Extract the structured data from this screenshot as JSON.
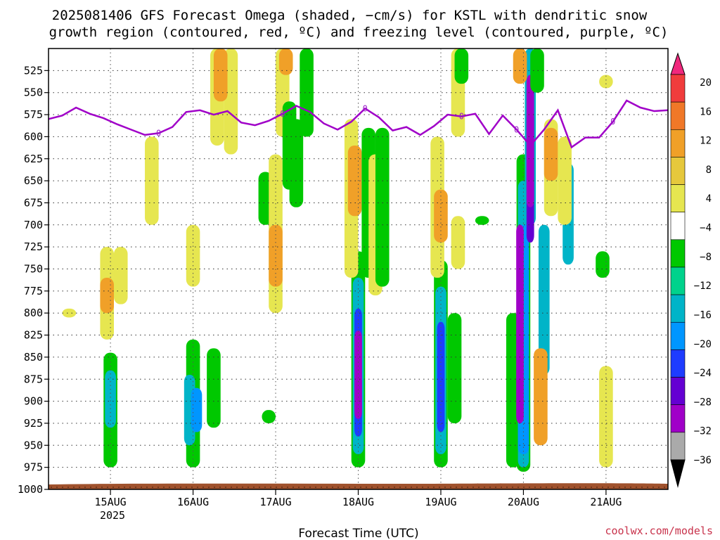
{
  "chart_data": {
    "type": "heatmap",
    "title_line1": "2025081406 GFS Forecast Omega (shaded, −cm/s) for KSTL with dendritic snow",
    "title_line2": "growth region (contoured, red, ºC) and freezing level (contoured, purple, ºC)",
    "xlabel": "Forecast Time (UTC)",
    "x_ticks": [
      "15AUG",
      "16AUG",
      "17AUG",
      "18AUG",
      "19AUG",
      "20AUG",
      "21AUG"
    ],
    "x_year_label": "2025",
    "x_range": [
      "2025-08-14T06",
      "2025-08-21T18"
    ],
    "y_ticks": [
      525,
      550,
      575,
      600,
      625,
      650,
      675,
      700,
      725,
      750,
      775,
      800,
      825,
      850,
      875,
      900,
      925,
      950,
      975,
      1000
    ],
    "y_range": [
      500,
      1000
    ],
    "grid": true,
    "colorbar": {
      "labels": [
        "20",
        "16",
        "12",
        "8",
        "4",
        "−4",
        "−8",
        "−12",
        "−16",
        "−20",
        "−24",
        "−28",
        "−32",
        "−36"
      ],
      "colors": [
        "#f0287d",
        "#f03c3c",
        "#f07828",
        "#f0a028",
        "#e6c83c",
        "#e6e650",
        "#ffffff",
        "#00c800",
        "#00d28c",
        "#00b4c8",
        "#0096ff",
        "#1e3cff",
        "#6400d2",
        "#a000c8",
        "#aaaaaa",
        "#000000"
      ]
    },
    "freezing_level": {
      "label": "0",
      "color": "#a000c8",
      "points": [
        [
          "2025-08-14T06",
          580
        ],
        [
          "2025-08-14T10",
          576
        ],
        [
          "2025-08-14T14",
          567
        ],
        [
          "2025-08-14T18",
          574
        ],
        [
          "2025-08-14T22",
          579
        ],
        [
          "2025-08-15T02",
          586
        ],
        [
          "2025-08-15T06",
          592
        ],
        [
          "2025-08-15T10",
          598
        ],
        [
          "2025-08-15T14",
          596
        ],
        [
          "2025-08-15T18",
          589
        ],
        [
          "2025-08-15T22",
          572
        ],
        [
          "2025-08-16T02",
          570
        ],
        [
          "2025-08-16T06",
          575
        ],
        [
          "2025-08-16T10",
          571
        ],
        [
          "2025-08-16T14",
          584
        ],
        [
          "2025-08-16T18",
          587
        ],
        [
          "2025-08-16T22",
          582
        ],
        [
          "2025-08-17T02",
          574
        ],
        [
          "2025-08-17T06",
          565
        ],
        [
          "2025-08-17T10",
          572
        ],
        [
          "2025-08-17T14",
          585
        ],
        [
          "2025-08-17T18",
          592
        ],
        [
          "2025-08-17T22",
          583
        ],
        [
          "2025-08-18T02",
          568
        ],
        [
          "2025-08-18T06",
          578
        ],
        [
          "2025-08-18T10",
          593
        ],
        [
          "2025-08-18T14",
          589
        ],
        [
          "2025-08-18T18",
          598
        ],
        [
          "2025-08-18T22",
          588
        ],
        [
          "2025-08-19T02",
          575
        ],
        [
          "2025-08-19T06",
          577
        ],
        [
          "2025-08-19T10",
          574
        ],
        [
          "2025-08-19T14",
          597
        ],
        [
          "2025-08-19T18",
          576
        ],
        [
          "2025-08-19T22",
          592
        ],
        [
          "2025-08-20T02",
          610
        ],
        [
          "2025-08-20T06",
          592
        ],
        [
          "2025-08-20T10",
          570
        ],
        [
          "2025-08-20T14",
          612
        ],
        [
          "2025-08-20T18",
          601
        ],
        [
          "2025-08-20T22",
          601
        ],
        [
          "2025-08-21T02",
          583
        ],
        [
          "2025-08-21T06",
          559
        ],
        [
          "2025-08-21T10",
          567
        ],
        [
          "2025-08-21T14",
          571
        ],
        [
          "2025-08-21T18",
          570
        ]
      ]
    },
    "omega_cells": [
      {
        "t": "2025-08-14T12",
        "top": 795,
        "bottom": 805,
        "value": 6
      },
      {
        "t": "2025-08-15T00",
        "top": 845,
        "bottom": 975,
        "value": -6
      },
      {
        "t": "2025-08-15T00",
        "top": 865,
        "bottom": 930,
        "value": -12
      },
      {
        "t": "2025-08-14T23",
        "top": 725,
        "bottom": 830,
        "value": 6
      },
      {
        "t": "2025-08-14T23",
        "top": 760,
        "bottom": 800,
        "value": 10
      },
      {
        "t": "2025-08-15T12",
        "top": 600,
        "bottom": 700,
        "value": 6
      },
      {
        "t": "2025-08-15T03",
        "top": 725,
        "bottom": 790,
        "value": 6
      },
      {
        "t": "2025-08-16T00",
        "top": 830,
        "bottom": 975,
        "value": -6
      },
      {
        "t": "2025-08-15T23",
        "top": 870,
        "bottom": 950,
        "value": -12
      },
      {
        "t": "2025-08-16T01",
        "top": 885,
        "bottom": 935,
        "value": -16
      },
      {
        "t": "2025-08-16T00",
        "top": 700,
        "bottom": 770,
        "value": 6
      },
      {
        "t": "2025-08-16T06",
        "top": 840,
        "bottom": 930,
        "value": -6
      },
      {
        "t": "2025-08-16T07",
        "top": 500,
        "bottom": 610,
        "value": 6
      },
      {
        "t": "2025-08-16T11",
        "top": 500,
        "bottom": 620,
        "value": 6
      },
      {
        "t": "2025-08-16T08",
        "top": 500,
        "bottom": 560,
        "value": 10
      },
      {
        "t": "2025-08-16T21",
        "top": 640,
        "bottom": 700,
        "value": -6
      },
      {
        "t": "2025-08-17T00",
        "top": 620,
        "bottom": 800,
        "value": 6
      },
      {
        "t": "2025-08-17T00",
        "top": 700,
        "bottom": 770,
        "value": 10
      },
      {
        "t": "2025-08-17T02",
        "top": 500,
        "bottom": 600,
        "value": 6
      },
      {
        "t": "2025-08-17T03",
        "top": 500,
        "bottom": 530,
        "value": 10
      },
      {
        "t": "2025-08-17T04",
        "top": 560,
        "bottom": 660,
        "value": -6
      },
      {
        "t": "2025-08-17T06",
        "top": 580,
        "bottom": 680,
        "value": -6
      },
      {
        "t": "2025-08-16T22",
        "top": 910,
        "bottom": 925,
        "value": -6
      },
      {
        "t": "2025-08-17T09",
        "top": 500,
        "bottom": 600,
        "value": -6
      },
      {
        "t": "2025-08-18T00",
        "top": 730,
        "bottom": 975,
        "value": -6
      },
      {
        "t": "2025-08-18T00",
        "top": 760,
        "bottom": 960,
        "value": -12
      },
      {
        "t": "2025-08-18T00",
        "top": 795,
        "bottom": 940,
        "value": -20
      },
      {
        "t": "2025-08-18T00",
        "top": 820,
        "bottom": 920,
        "value": -28
      },
      {
        "t": "2025-08-17T22",
        "top": 580,
        "bottom": 760,
        "value": 6
      },
      {
        "t": "2025-08-17T23",
        "top": 610,
        "bottom": 690,
        "value": 10
      },
      {
        "t": "2025-08-18T03",
        "top": 590,
        "bottom": 760,
        "value": -6
      },
      {
        "t": "2025-08-18T05",
        "top": 620,
        "bottom": 780,
        "value": 6
      },
      {
        "t": "2025-08-18T07",
        "top": 590,
        "bottom": 770,
        "value": -6
      },
      {
        "t": "2025-08-19T00",
        "top": 740,
        "bottom": 975,
        "value": -6
      },
      {
        "t": "2025-08-19T00",
        "top": 770,
        "bottom": 960,
        "value": -12
      },
      {
        "t": "2025-08-19T00",
        "top": 810,
        "bottom": 935,
        "value": -20
      },
      {
        "t": "2025-08-18T23",
        "top": 600,
        "bottom": 760,
        "value": 6
      },
      {
        "t": "2025-08-19T00",
        "top": 660,
        "bottom": 720,
        "value": 10
      },
      {
        "t": "2025-08-19T05",
        "top": 690,
        "bottom": 750,
        "value": 6
      },
      {
        "t": "2025-08-19T04",
        "top": 800,
        "bottom": 925,
        "value": -6
      },
      {
        "t": "2025-08-19T05",
        "top": 500,
        "bottom": 600,
        "value": 6
      },
      {
        "t": "2025-08-19T06",
        "top": 500,
        "bottom": 540,
        "value": -6
      },
      {
        "t": "2025-08-19T12",
        "top": 690,
        "bottom": 700,
        "value": -6
      },
      {
        "t": "2025-08-20T00",
        "top": 620,
        "bottom": 980,
        "value": -6
      },
      {
        "t": "2025-08-19T21",
        "top": 800,
        "bottom": 975,
        "value": -6
      },
      {
        "t": "2025-08-20T00",
        "top": 650,
        "bottom": 975,
        "value": -12
      },
      {
        "t": "2025-08-20T00",
        "top": 700,
        "bottom": 960,
        "value": -16
      },
      {
        "t": "2025-08-19T23",
        "top": 700,
        "bottom": 925,
        "value": -28
      },
      {
        "t": "2025-08-20T02",
        "top": 500,
        "bottom": 700,
        "value": -12
      },
      {
        "t": "2025-08-20T02",
        "top": 570,
        "bottom": 720,
        "value": -24
      },
      {
        "t": "2025-08-20T02",
        "top": 530,
        "bottom": 680,
        "value": -28
      },
      {
        "t": "2025-08-19T23",
        "top": 500,
        "bottom": 540,
        "value": 10
      },
      {
        "t": "2025-08-20T04",
        "top": 500,
        "bottom": 550,
        "value": -6
      },
      {
        "t": "2025-08-20T06",
        "top": 700,
        "bottom": 870,
        "value": -12
      },
      {
        "t": "2025-08-20T05",
        "top": 840,
        "bottom": 950,
        "value": 10
      },
      {
        "t": "2025-08-20T08",
        "top": 580,
        "bottom": 690,
        "value": 6
      },
      {
        "t": "2025-08-20T08",
        "top": 590,
        "bottom": 650,
        "value": 10
      },
      {
        "t": "2025-08-20T13",
        "top": 630,
        "bottom": 745,
        "value": -12
      },
      {
        "t": "2025-08-20T12",
        "top": 600,
        "bottom": 700,
        "value": 6
      },
      {
        "t": "2025-08-20T23",
        "top": 730,
        "bottom": 760,
        "value": -6
      },
      {
        "t": "2025-08-21T00",
        "top": 860,
        "bottom": 975,
        "value": 6
      },
      {
        "t": "2025-08-21T00",
        "top": 530,
        "bottom": 545,
        "value": 6
      }
    ]
  },
  "credit": "coolwx.com/models"
}
